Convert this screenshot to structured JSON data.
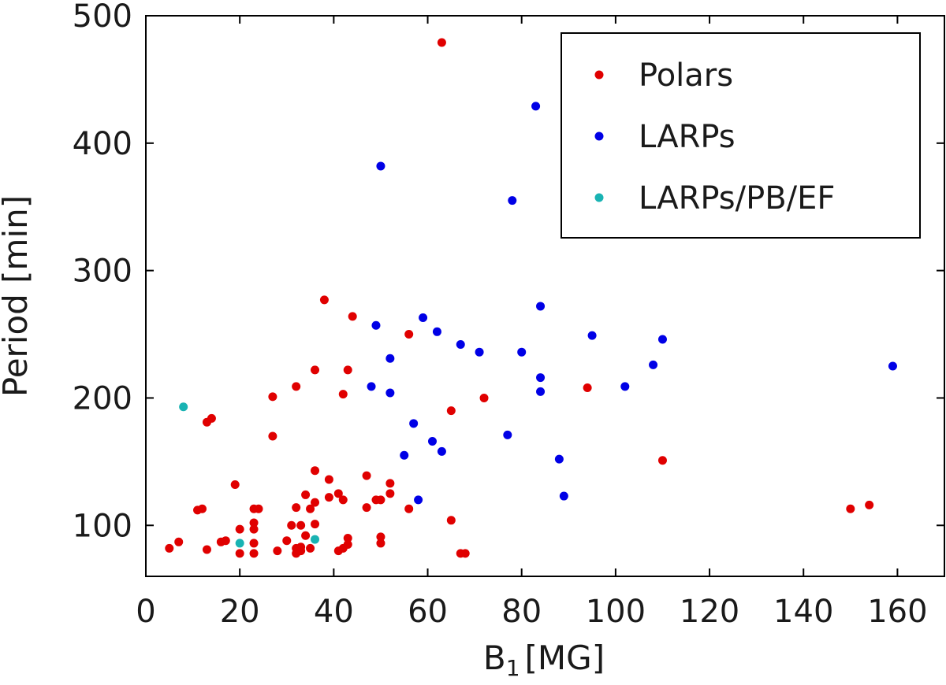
{
  "chart_data": {
    "type": "scatter",
    "xlabel_main": "B",
    "xlabel_sub": "1",
    "xlabel_unit": "[MG]",
    "ylabel": "Period [min]",
    "xlim": [
      0,
      170
    ],
    "ylim": [
      60,
      500
    ],
    "xticks": [
      0,
      20,
      40,
      60,
      80,
      100,
      120,
      140,
      160
    ],
    "yticks": [
      100,
      200,
      300,
      400,
      500
    ],
    "legend_position": "top-right",
    "grid": false,
    "series": [
      {
        "name": "Polars",
        "color": "#e00000",
        "points": [
          [
            63,
            479
          ],
          [
            38,
            277
          ],
          [
            44,
            264
          ],
          [
            56,
            250
          ],
          [
            36,
            222
          ],
          [
            43,
            222
          ],
          [
            27,
            201
          ],
          [
            32,
            209
          ],
          [
            42,
            203
          ],
          [
            72,
            200
          ],
          [
            94,
            208
          ],
          [
            14,
            184
          ],
          [
            13,
            181
          ],
          [
            65,
            190
          ],
          [
            27,
            170
          ],
          [
            110,
            151
          ],
          [
            36,
            143
          ],
          [
            47,
            139
          ],
          [
            39,
            136
          ],
          [
            19,
            132
          ],
          [
            52,
            133
          ],
          [
            41,
            125
          ],
          [
            52,
            125
          ],
          [
            42,
            120
          ],
          [
            49,
            120
          ],
          [
            50,
            120
          ],
          [
            36,
            118
          ],
          [
            12,
            113
          ],
          [
            11,
            112
          ],
          [
            24,
            113
          ],
          [
            23,
            113
          ],
          [
            32,
            114
          ],
          [
            35,
            113
          ],
          [
            47,
            114
          ],
          [
            56,
            113
          ],
          [
            150,
            113
          ],
          [
            154,
            116
          ],
          [
            34,
            124
          ],
          [
            39,
            122
          ],
          [
            23,
            102
          ],
          [
            20,
            97
          ],
          [
            23,
            97
          ],
          [
            31,
            100
          ],
          [
            33,
            100
          ],
          [
            36,
            101
          ],
          [
            65,
            104
          ],
          [
            7,
            87
          ],
          [
            5,
            82
          ],
          [
            13,
            81
          ],
          [
            16,
            87
          ],
          [
            17,
            88
          ],
          [
            23,
            86
          ],
          [
            30,
            88
          ],
          [
            34,
            92
          ],
          [
            43,
            90
          ],
          [
            50,
            91
          ],
          [
            50,
            86
          ],
          [
            32,
            82
          ],
          [
            33,
            83
          ],
          [
            35,
            82
          ],
          [
            42,
            82
          ],
          [
            43,
            85
          ],
          [
            41,
            80
          ],
          [
            28,
            80
          ],
          [
            20,
            78
          ],
          [
            23,
            78
          ],
          [
            32,
            78
          ],
          [
            33,
            80
          ],
          [
            67,
            78
          ],
          [
            68,
            78
          ]
        ]
      },
      {
        "name": "LARPs",
        "color": "#0000e6",
        "points": [
          [
            83,
            429
          ],
          [
            50,
            382
          ],
          [
            78,
            355
          ],
          [
            84,
            272
          ],
          [
            49,
            257
          ],
          [
            59,
            263
          ],
          [
            62,
            252
          ],
          [
            95,
            249
          ],
          [
            110,
            246
          ],
          [
            67,
            242
          ],
          [
            71,
            236
          ],
          [
            80,
            236
          ],
          [
            52,
            231
          ],
          [
            108,
            226
          ],
          [
            159,
            225
          ],
          [
            84,
            216
          ],
          [
            48,
            209
          ],
          [
            102,
            209
          ],
          [
            52,
            204
          ],
          [
            84,
            205
          ],
          [
            57,
            180
          ],
          [
            77,
            171
          ],
          [
            61,
            166
          ],
          [
            63,
            158
          ],
          [
            55,
            155
          ],
          [
            88,
            152
          ],
          [
            58,
            120
          ],
          [
            89,
            123
          ]
        ]
      },
      {
        "name": "LARPs/PB/EF",
        "color": "#19b3b3",
        "points": [
          [
            8,
            193
          ],
          [
            20,
            86
          ],
          [
            36,
            89
          ]
        ]
      }
    ]
  }
}
